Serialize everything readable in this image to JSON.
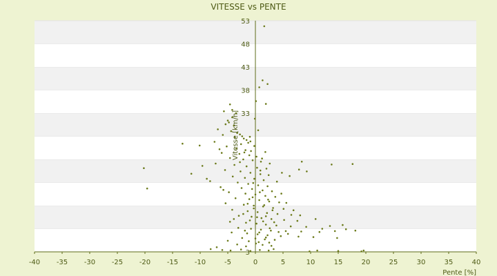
{
  "chart_data": {
    "type": "scatter",
    "title": "VITESSE vs PENTE",
    "xlabel": "Pente [%]",
    "ylabel": "Vitesse [km/h]",
    "xlim": [
      -40,
      40
    ],
    "ylim": [
      3,
      53
    ],
    "x_ticks": [
      "-40",
      "-35",
      "-30",
      "-25",
      "-20",
      "-15",
      "-10",
      "-5",
      "0",
      "5",
      "10",
      "15",
      "20",
      "25",
      "30",
      "35",
      "40"
    ],
    "y_ticks": [
      "3",
      "8",
      "13",
      "18",
      "23",
      "28",
      "33",
      "38",
      "43",
      "48",
      "53"
    ],
    "y_ticks_visible": [
      "33",
      "38",
      "43",
      "48",
      "53"
    ],
    "grid": "horizontal bands",
    "colors": {
      "background": "#eef3d2",
      "band_light": "#ffffff",
      "band_dark": "#f1f1f1",
      "point": "#6b7a1a",
      "text": "#4d5a14",
      "axis": "#5d6b18"
    },
    "points": [
      [
        1.6,
        51.8
      ],
      [
        1.3,
        40.1
      ],
      [
        2.2,
        39.3
      ],
      [
        0.7,
        38.6
      ],
      [
        0.1,
        35.6
      ],
      [
        1.9,
        35.0
      ],
      [
        -4.6,
        34.9
      ],
      [
        -5.7,
        33.4
      ],
      [
        -4.2,
        33.7
      ],
      [
        -3.5,
        33.0
      ],
      [
        -4.2,
        32.1
      ],
      [
        -5.0,
        31.4
      ],
      [
        -4.8,
        31.0
      ],
      [
        -5.4,
        30.6
      ],
      [
        -3.9,
        30.3
      ],
      [
        -6.8,
        29.5
      ],
      [
        -4.4,
        29.1
      ],
      [
        -3.3,
        28.7
      ],
      [
        -2.8,
        28.4
      ],
      [
        -2.4,
        28.0
      ],
      [
        -3.7,
        27.8
      ],
      [
        -2.1,
        27.5
      ],
      [
        -1.6,
        27.2
      ],
      [
        -0.9,
        26.9
      ],
      [
        -7.4,
        26.8
      ],
      [
        -1.3,
        26.6
      ],
      [
        -2.6,
        26.3
      ],
      [
        -13.2,
        26.4
      ],
      [
        -10.1,
        26.0
      ],
      [
        -5.2,
        25.8
      ],
      [
        -3.4,
        25.4
      ],
      [
        -1.8,
        25.0
      ],
      [
        -0.8,
        24.8
      ],
      [
        -6.1,
        24.4
      ],
      [
        -2.9,
        24.2
      ],
      [
        -1.1,
        23.9
      ],
      [
        0.2,
        23.6
      ],
      [
        -4.6,
        23.3
      ],
      [
        -2.2,
        23.0
      ],
      [
        -0.5,
        22.8
      ],
      [
        1.0,
        22.5
      ],
      [
        -7.2,
        22.1
      ],
      [
        -3.8,
        21.8
      ],
      [
        -1.6,
        21.5
      ],
      [
        0.3,
        21.2
      ],
      [
        2.0,
        21.0
      ],
      [
        -20.2,
        21.1
      ],
      [
        -5.5,
        20.7
      ],
      [
        -2.7,
        20.4
      ],
      [
        -0.9,
        20.1
      ],
      [
        0.9,
        19.8
      ],
      [
        2.4,
        19.6
      ],
      [
        -11.6,
        19.9
      ],
      [
        -4.1,
        19.3
      ],
      [
        -1.9,
        19.0
      ],
      [
        -0.2,
        18.8
      ],
      [
        1.5,
        18.5
      ],
      [
        -8.2,
        18.3
      ],
      [
        -3.2,
        18.0
      ],
      [
        -1.3,
        17.7
      ],
      [
        0.5,
        17.4
      ],
      [
        2.2,
        17.2
      ],
      [
        -6.3,
        17.0
      ],
      [
        -2.5,
        16.8
      ],
      [
        -0.6,
        16.6
      ],
      [
        1.3,
        16.3
      ],
      [
        3.0,
        16.1
      ],
      [
        -19.6,
        16.7
      ],
      [
        -4.8,
        15.9
      ],
      [
        -1.8,
        15.6
      ],
      [
        0.0,
        15.4
      ],
      [
        1.8,
        15.1
      ],
      [
        3.6,
        14.9
      ],
      [
        -3.6,
        14.6
      ],
      [
        -1.1,
        14.4
      ],
      [
        0.7,
        14.2
      ],
      [
        2.5,
        13.9
      ],
      [
        4.3,
        13.7
      ],
      [
        -5.4,
        13.5
      ],
      [
        -2.1,
        13.2
      ],
      [
        -0.3,
        13.0
      ],
      [
        1.4,
        12.8
      ],
      [
        3.2,
        12.5
      ],
      [
        5.1,
        12.3
      ],
      [
        -4.2,
        12.1
      ],
      [
        -1.4,
        11.8
      ],
      [
        0.4,
        11.6
      ],
      [
        2.1,
        11.4
      ],
      [
        4.0,
        11.2
      ],
      [
        6.5,
        11.0
      ],
      [
        -3.0,
        10.8
      ],
      [
        -0.7,
        10.6
      ],
      [
        1.1,
        10.3
      ],
      [
        2.9,
        10.1
      ],
      [
        5.2,
        9.9
      ],
      [
        7.6,
        9.7
      ],
      [
        10.9,
        10.1
      ],
      [
        -4.6,
        9.5
      ],
      [
        -1.7,
        9.3
      ],
      [
        0.2,
        9.1
      ],
      [
        1.9,
        8.9
      ],
      [
        3.8,
        8.7
      ],
      [
        6.4,
        8.5
      ],
      [
        9.2,
        8.4
      ],
      [
        13.5,
        8.6
      ],
      [
        15.8,
        8.8
      ],
      [
        -3.1,
        8.2
      ],
      [
        -0.8,
        8.0
      ],
      [
        1.0,
        7.8
      ],
      [
        2.8,
        7.6
      ],
      [
        5.5,
        7.5
      ],
      [
        8.3,
        7.4
      ],
      [
        11.6,
        7.3
      ],
      [
        14.4,
        7.5
      ],
      [
        -4.3,
        7.2
      ],
      [
        -1.5,
        7.0
      ],
      [
        0.4,
        6.8
      ],
      [
        2.2,
        6.6
      ],
      [
        4.6,
        6.4
      ],
      [
        7.8,
        6.3
      ],
      [
        10.5,
        6.2
      ],
      [
        -2.4,
        6.0
      ],
      [
        0.0,
        5.9
      ],
      [
        1.7,
        5.7
      ],
      [
        3.5,
        5.6
      ],
      [
        14.8,
        6.0
      ],
      [
        -5.0,
        5.4
      ],
      [
        -1.2,
        5.3
      ],
      [
        0.6,
        5.1
      ],
      [
        2.5,
        5.0
      ],
      [
        -8.1,
        3.6
      ],
      [
        -6.0,
        3.4
      ],
      [
        -4.5,
        3.3
      ],
      [
        -2.6,
        3.5
      ],
      [
        -0.9,
        3.2
      ],
      [
        0.8,
        3.4
      ],
      [
        2.4,
        3.3
      ],
      [
        3.3,
        3.6
      ],
      [
        9.8,
        3.1
      ],
      [
        11.2,
        3.3
      ],
      [
        15.0,
        3.2
      ],
      [
        19.2,
        3.1
      ],
      [
        19.6,
        3.3
      ],
      [
        -1.7,
        4.2
      ],
      [
        1.3,
        4.5
      ],
      [
        -7.0,
        4.0
      ],
      [
        -3.3,
        4.6
      ],
      [
        0.1,
        4.8
      ],
      [
        2.9,
        4.3
      ],
      [
        -5.8,
        16.4
      ],
      [
        -0.4,
        17.9
      ],
      [
        0.9,
        20.6
      ],
      [
        -2.8,
        22.4
      ],
      [
        1.8,
        24.6
      ],
      [
        -1.0,
        27.9
      ],
      [
        0.5,
        29.3
      ],
      [
        -0.1,
        31.8
      ],
      [
        -5.9,
        28.3
      ],
      [
        -6.5,
        25.2
      ],
      [
        -8.8,
        18.8
      ],
      [
        -9.6,
        21.6
      ],
      [
        4.8,
        20.1
      ],
      [
        6.2,
        19.4
      ],
      [
        7.9,
        20.8
      ],
      [
        9.3,
        20.4
      ],
      [
        8.4,
        22.5
      ],
      [
        13.8,
        21.9
      ],
      [
        17.6,
        22.0
      ],
      [
        12.1,
        8.0
      ],
      [
        16.4,
        7.9
      ],
      [
        18.1,
        7.6
      ],
      [
        -2.0,
        24.5
      ],
      [
        -0.2,
        25.9
      ],
      [
        1.2,
        23.2
      ],
      [
        2.6,
        22.1
      ],
      [
        3.9,
        18.2
      ],
      [
        4.7,
        15.6
      ],
      [
        5.6,
        13.6
      ],
      [
        6.9,
        12.0
      ],
      [
        8.1,
        10.9
      ],
      [
        -1.4,
        13.4
      ],
      [
        -0.5,
        14.8
      ],
      [
        0.8,
        15.9
      ],
      [
        1.6,
        13.1
      ],
      [
        2.3,
        14.3
      ],
      [
        3.1,
        12.0
      ],
      [
        -2.2,
        11.2
      ],
      [
        -0.3,
        12.4
      ],
      [
        1.9,
        10.7
      ],
      [
        3.4,
        9.4
      ],
      [
        -3.9,
        10.1
      ],
      [
        -1.0,
        9.8
      ],
      [
        0.3,
        10.5
      ],
      [
        1.4,
        9.6
      ],
      [
        2.6,
        8.1
      ],
      [
        4.2,
        7.3
      ],
      [
        5.9,
        6.9
      ],
      [
        -1.9,
        7.6
      ],
      [
        0.7,
        7.2
      ],
      [
        1.9,
        6.1
      ]
    ]
  }
}
